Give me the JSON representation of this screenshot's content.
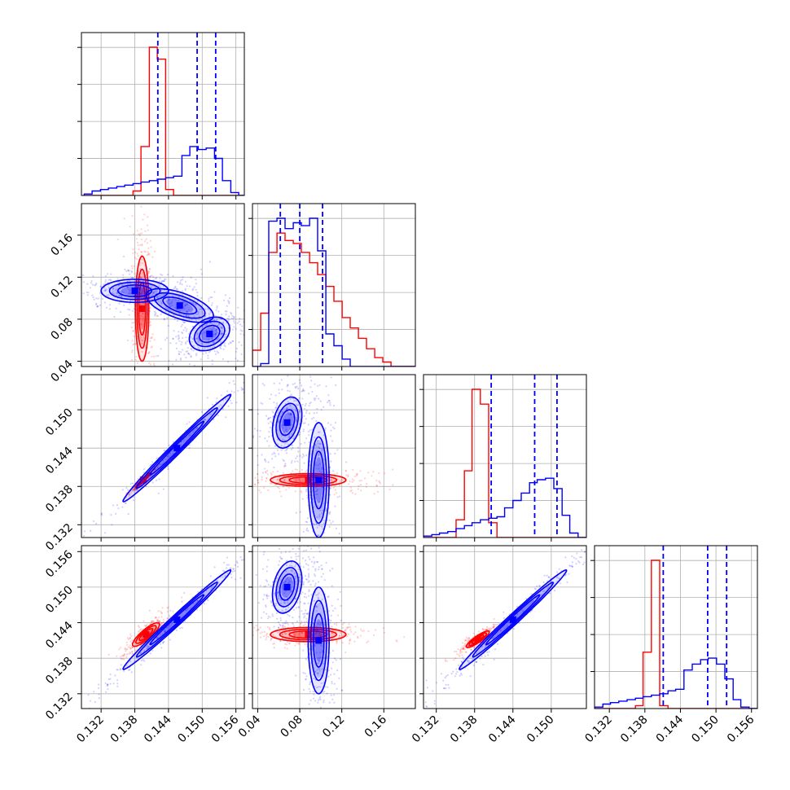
{
  "chart_data": {
    "type": "corner",
    "grid": true,
    "colors": {
      "series_a": "#ff0000",
      "series_b": "#0000ff"
    },
    "ticks": {
      "p0": [
        "0.132",
        "0.138",
        "0.144",
        "0.150",
        "0.156"
      ],
      "p1": [
        "0.04",
        "0.08",
        "0.12",
        "0.16"
      ],
      "p2": [
        "0.132",
        "0.138",
        "0.144",
        "0.150"
      ],
      "p2_y": [
        "0.132",
        "0.138",
        "0.144",
        "0.150"
      ],
      "p3": [
        "0.132",
        "0.138",
        "0.144",
        "0.150",
        "0.156"
      ]
    },
    "ranges": {
      "p0": [
        0.1285,
        0.1575
      ],
      "p1": [
        0.035,
        0.19
      ],
      "p2": [
        0.13,
        0.1555
      ],
      "p3": [
        0.1295,
        0.157
      ]
    },
    "quantiles_series_b": {
      "p0": [
        0.1421,
        0.1491,
        0.1524
      ],
      "p1": [
        0.0615,
        0.08,
        0.1017
      ],
      "p2": [
        0.1406,
        0.1474,
        0.1509
      ],
      "p3": [
        0.1411,
        0.1486,
        0.1518
      ]
    },
    "histograms": {
      "p0": {
        "edges": [
          0.129,
          0.1304,
          0.1319,
          0.1333,
          0.1348,
          0.1362,
          0.1377,
          0.1391,
          0.1406,
          0.142,
          0.1435,
          0.1449,
          0.1464,
          0.1478,
          0.1493,
          0.1507,
          0.1522,
          0.1536,
          0.1551,
          0.1565,
          0.158
        ],
        "series_a": [
          0,
          0,
          0,
          0,
          0,
          0,
          0.03,
          0.33,
          1.0,
          0.92,
          0.04,
          0.0,
          0,
          0,
          0,
          0,
          0,
          0,
          0,
          0
        ],
        "series_b": [
          0.01,
          0.03,
          0.04,
          0.05,
          0.06,
          0.07,
          0.08,
          0.09,
          0.1,
          0.11,
          0.12,
          0.13,
          0.27,
          0.33,
          0.31,
          0.32,
          0.25,
          0.1,
          0.02,
          0.0
        ]
      },
      "p1": {
        "edges": [
          0.035,
          0.0428,
          0.0505,
          0.0583,
          0.066,
          0.0738,
          0.0815,
          0.0893,
          0.097,
          0.1048,
          0.1125,
          0.1203,
          0.128,
          0.1358,
          0.1435,
          0.1513,
          0.159,
          0.1668,
          0.1745,
          0.1823,
          0.19
        ],
        "series_a": [
          0.11,
          0.36,
          0.77,
          0.9,
          0.85,
          0.83,
          0.77,
          0.7,
          0.62,
          0.54,
          0.44,
          0.33,
          0.26,
          0.19,
          0.12,
          0.06,
          0.03,
          0.0,
          0,
          0
        ],
        "series_b": [
          0,
          0.02,
          0.98,
          1.0,
          0.93,
          0.97,
          0.95,
          1.0,
          0.78,
          0.22,
          0.14,
          0.05,
          0.0,
          0,
          0,
          0,
          0,
          0,
          0,
          0
        ]
      },
      "p2": {
        "edges": [
          0.13,
          0.1313,
          0.1325,
          0.1338,
          0.1351,
          0.1364,
          0.1376,
          0.1389,
          0.1402,
          0.1415,
          0.1427,
          0.144,
          0.1453,
          0.1466,
          0.1478,
          0.1491,
          0.1504,
          0.1517,
          0.1529,
          0.1542,
          0.1555
        ],
        "series_a": [
          0,
          0,
          0,
          0,
          0.12,
          0.45,
          1.0,
          0.9,
          0.1,
          0.0,
          0,
          0,
          0,
          0,
          0,
          0,
          0,
          0,
          0,
          0
        ],
        "series_b": [
          0.01,
          0.02,
          0.03,
          0.04,
          0.06,
          0.08,
          0.1,
          0.12,
          0.13,
          0.14,
          0.2,
          0.25,
          0.3,
          0.37,
          0.39,
          0.4,
          0.33,
          0.15,
          0.03,
          0.0
        ]
      },
      "p3": {
        "edges": [
          0.1295,
          0.1309,
          0.1322,
          0.1336,
          0.135,
          0.1364,
          0.1377,
          0.1391,
          0.1405,
          0.1419,
          0.1432,
          0.1446,
          0.146,
          0.1474,
          0.1487,
          0.1501,
          0.1515,
          0.1529,
          0.1542,
          0.1556,
          0.157
        ],
        "series_a": [
          0,
          0,
          0,
          0,
          0,
          0.02,
          0.38,
          1.0,
          0.02,
          0.0,
          0,
          0,
          0,
          0,
          0,
          0,
          0,
          0,
          0,
          0
        ],
        "series_b": [
          0.01,
          0.03,
          0.04,
          0.05,
          0.06,
          0.07,
          0.08,
          0.09,
          0.1,
          0.12,
          0.13,
          0.26,
          0.3,
          0.33,
          0.34,
          0.3,
          0.2,
          0.06,
          0.01,
          0.0
        ]
      }
    },
    "pairs": [
      {
        "x": "p0",
        "y": "p1",
        "series_a": [
          {
            "mx": 0.1393,
            "my": 0.09,
            "sx": 0.0006,
            "sy": 0.025,
            "rho": 0.0
          }
        ],
        "series_b": [
          {
            "mx": 0.138,
            "my": 0.107,
            "sx": 0.003,
            "sy": 0.0055,
            "rho": 0.0
          },
          {
            "mx": 0.146,
            "my": 0.093,
            "sx": 0.003,
            "sy": 0.008,
            "rho": -0.6
          },
          {
            "mx": 0.1513,
            "my": 0.066,
            "sx": 0.0018,
            "sy": 0.008,
            "rho": 0.3
          }
        ]
      },
      {
        "x": "p0",
        "y": "p2",
        "series_a": [
          {
            "mx": 0.1395,
            "my": 0.139,
            "sx": 0.0007,
            "sy": 0.0006,
            "rho": 0.97
          }
        ],
        "series_b": [
          {
            "mx": 0.1455,
            "my": 0.144,
            "sx": 0.0048,
            "sy": 0.0042,
            "rho": 0.99
          }
        ]
      },
      {
        "x": "p1",
        "y": "p2",
        "series_a": [
          {
            "mx": 0.088,
            "my": 0.139,
            "sx": 0.018,
            "sy": 0.0005,
            "rho": 0.0
          }
        ],
        "series_b": [
          {
            "mx": 0.068,
            "my": 0.148,
            "sx": 0.007,
            "sy": 0.002,
            "rho": 0.3
          },
          {
            "mx": 0.098,
            "my": 0.139,
            "sx": 0.005,
            "sy": 0.0045,
            "rho": 0.0
          }
        ]
      },
      {
        "x": "p0",
        "y": "p3",
        "series_a": [
          {
            "mx": 0.14,
            "my": 0.142,
            "sx": 0.0012,
            "sy": 0.001,
            "rho": 0.85
          }
        ],
        "series_b": [
          {
            "mx": 0.1455,
            "my": 0.1445,
            "sx": 0.0048,
            "sy": 0.0042,
            "rho": 0.99
          }
        ]
      },
      {
        "x": "p1",
        "y": "p3",
        "series_a": [
          {
            "mx": 0.088,
            "my": 0.142,
            "sx": 0.018,
            "sy": 0.0006,
            "rho": 0.0
          }
        ],
        "series_b": [
          {
            "mx": 0.068,
            "my": 0.15,
            "sx": 0.007,
            "sy": 0.0022,
            "rho": 0.3
          },
          {
            "mx": 0.098,
            "my": 0.141,
            "sx": 0.005,
            "sy": 0.0045,
            "rho": 0.0
          }
        ]
      },
      {
        "x": "p2",
        "y": "p3",
        "series_a": [
          {
            "mx": 0.1385,
            "my": 0.1412,
            "sx": 0.0009,
            "sy": 0.0007,
            "rho": 0.88
          }
        ],
        "series_b": [
          {
            "mx": 0.144,
            "my": 0.1445,
            "sx": 0.0042,
            "sy": 0.0042,
            "rho": 0.99
          }
        ]
      }
    ]
  }
}
